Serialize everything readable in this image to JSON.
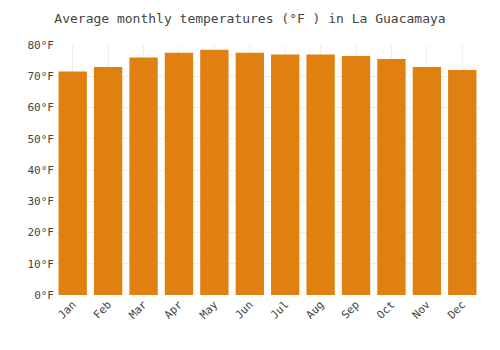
{
  "chart_data": {
    "type": "bar",
    "title": "Average monthly temperatures (°F ) in La Guacamaya",
    "categories": [
      "Jan",
      "Feb",
      "Mar",
      "Apr",
      "May",
      "Jun",
      "Jul",
      "Aug",
      "Sep",
      "Oct",
      "Nov",
      "Dec"
    ],
    "values": [
      71.5,
      73.0,
      76.0,
      77.5,
      78.5,
      77.5,
      77.0,
      77.0,
      76.5,
      75.5,
      73.0,
      72.0
    ],
    "color": "#E08010",
    "ylim": [
      0,
      80
    ],
    "yticks": [
      {
        "value": 0,
        "label": "0°F"
      },
      {
        "value": 10,
        "label": "10°F"
      },
      {
        "value": 20,
        "label": "20°F"
      },
      {
        "value": 30,
        "label": "30°F"
      },
      {
        "value": 40,
        "label": "40°F"
      },
      {
        "value": 50,
        "label": "50°F"
      },
      {
        "value": 60,
        "label": "60°F"
      },
      {
        "value": 70,
        "label": "70°F"
      },
      {
        "value": 80,
        "label": "80°F"
      }
    ],
    "grid": true
  }
}
